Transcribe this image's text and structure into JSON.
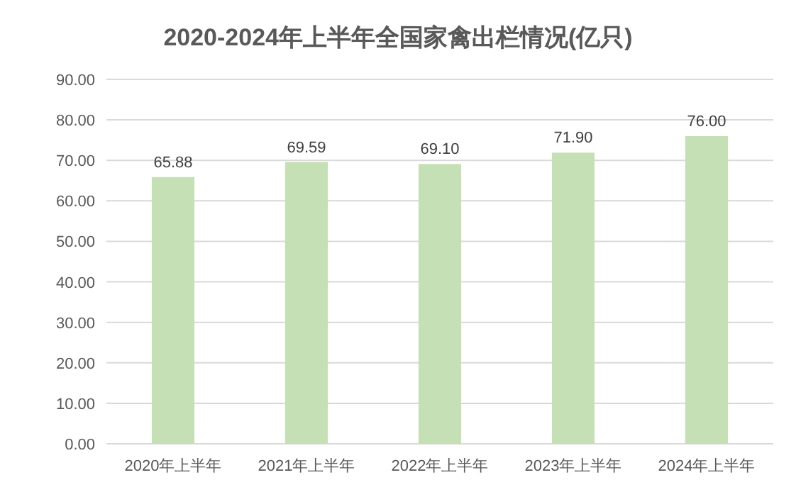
{
  "chart_data": {
    "type": "bar",
    "title": "2020-2024年上半年全国家禽出栏情况(亿只)",
    "categories": [
      "2020年上半年",
      "2021年上半年",
      "2022年上半年",
      "2023年上半年",
      "2024年上半年"
    ],
    "values": [
      65.88,
      69.59,
      69.1,
      71.9,
      76.0
    ],
    "value_labels": [
      "65.88",
      "69.59",
      "69.10",
      "71.90",
      "76.00"
    ],
    "color": "#c5e0b4",
    "ylim": [
      0,
      90
    ],
    "yticks": [
      {
        "value": 0,
        "label": "0.00"
      },
      {
        "value": 10,
        "label": "10.00"
      },
      {
        "value": 20,
        "label": "20.00"
      },
      {
        "value": 30,
        "label": "30.00"
      },
      {
        "value": 40,
        "label": "40.00"
      },
      {
        "value": 50,
        "label": "50.00"
      },
      {
        "value": 60,
        "label": "60.00"
      },
      {
        "value": 70,
        "label": "70.00"
      },
      {
        "value": 80,
        "label": "80.00"
      },
      {
        "value": 90,
        "label": "90.00"
      }
    ],
    "grid": "y"
  }
}
